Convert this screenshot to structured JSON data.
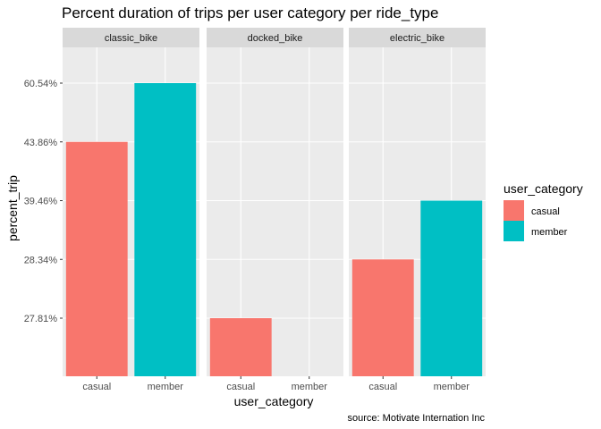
{
  "chart_data": {
    "type": "bar",
    "title": "Percent duration of trips per user category per ride_type",
    "xlabel": "user_category",
    "ylabel": "percent_trip",
    "caption": "source: Motivate Internation Inc",
    "y_ticks": [
      "27.81%",
      "28.34%",
      "39.46%",
      "43.86%",
      "60.54%"
    ],
    "categories": [
      "casual",
      "member"
    ],
    "panels": [
      {
        "name": "classic_bike",
        "values": [
          43.86,
          60.54
        ]
      },
      {
        "name": "docked_bike",
        "values": [
          27.81,
          null
        ]
      },
      {
        "name": "electric_bike",
        "values": [
          28.34,
          39.46
        ]
      }
    ],
    "legend": {
      "title": "user_category",
      "placement": "right",
      "entries": [
        {
          "label": "casual",
          "color": "#F8766D"
        },
        {
          "label": "member",
          "color": "#00BFC4"
        }
      ]
    },
    "colors": {
      "casual": "#F8766D",
      "member": "#00BFC4",
      "panel_bg": "#EBEBEB",
      "strip_bg": "#D9D9D9",
      "grid": "#FFFFFF"
    },
    "grid": true
  }
}
